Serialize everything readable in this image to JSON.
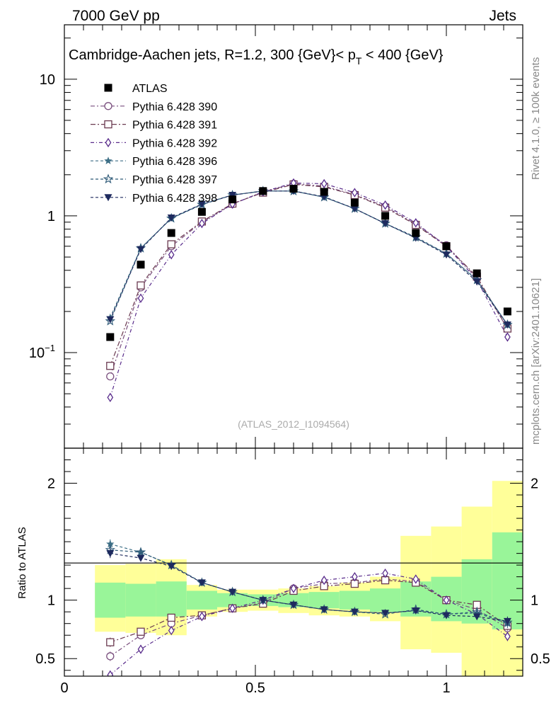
{
  "header": {
    "left": "7000 GeV pp",
    "right": "Jets"
  },
  "side_texts": {
    "rivet": "Rivet 4.1.0, ≥ 100k events",
    "mcplots": "mcplots.cern.ch [arXiv:2401.10621]"
  },
  "colors": {
    "data": "#000000",
    "p390": "#7a4f7e",
    "p391": "#6b3a50",
    "p392": "#5a2d8c",
    "p396": "#3d6f86",
    "p397": "#2f5a78",
    "p398": "#1e2a5e",
    "band_inner": "#99f599",
    "band_outer": "#ffff99"
  },
  "chart_data": [
    {
      "type": "scatter",
      "panel": "main",
      "title": "Cambridge-Aachen jets, R=1.2,  300 {GeV}< p_T < 400 {GeV}",
      "title_main": "Cambridge-Aachen jets, R=1.2,  300 {GeV}< p",
      "title_sub": "T",
      "title_tail": " < 400 {GeV}",
      "watermark": "(ATLAS_2012_I1094564)",
      "yscale": "log",
      "ylim": [
        0.02,
        25
      ],
      "xlim": [
        0,
        1.2
      ],
      "yticks": [
        {
          "v": 0.1,
          "base": "10",
          "exp": "−1"
        },
        {
          "v": 1,
          "base": "1",
          "exp": ""
        },
        {
          "v": 10,
          "base": "10",
          "exp": ""
        }
      ],
      "legend_position": "top-left",
      "x": [
        0.12,
        0.2,
        0.28,
        0.36,
        0.44,
        0.52,
        0.6,
        0.68,
        0.76,
        0.84,
        0.92,
        1.0,
        1.08,
        1.16
      ],
      "series": [
        {
          "name": "ATLAS",
          "key": "data",
          "marker": "square-filled",
          "dash": "none",
          "values": [
            0.13,
            0.44,
            0.75,
            1.07,
            1.32,
            1.52,
            1.58,
            1.5,
            1.25,
            1.0,
            0.75,
            0.6,
            0.38,
            0.2
          ]
        },
        {
          "name": "Pythia 6.428 390",
          "key": "p390",
          "marker": "circle-open",
          "dash": "6,3,2,3",
          "values": [
            0.067,
            0.3,
            0.6,
            0.9,
            1.22,
            1.5,
            1.72,
            1.65,
            1.43,
            1.17,
            0.87,
            0.61,
            0.35,
            0.15
          ]
        },
        {
          "name": "Pythia 6.428 391",
          "key": "p391",
          "marker": "square-open",
          "dash": "7,3,2,3",
          "values": [
            0.08,
            0.31,
            0.62,
            0.91,
            1.23,
            1.48,
            1.7,
            1.63,
            1.42,
            1.15,
            0.86,
            0.6,
            0.36,
            0.15
          ]
        },
        {
          "name": "Pythia 6.428 392",
          "key": "p392",
          "marker": "diamond-open",
          "dash": "5,3,1,3",
          "values": [
            0.047,
            0.25,
            0.52,
            0.88,
            1.22,
            1.5,
            1.74,
            1.72,
            1.48,
            1.2,
            0.89,
            0.6,
            0.34,
            0.13
          ]
        },
        {
          "name": "Pythia 6.428 396",
          "key": "p396",
          "marker": "star-filled",
          "dash": "4,3",
          "values": [
            0.18,
            0.58,
            0.96,
            1.22,
            1.42,
            1.52,
            1.52,
            1.37,
            1.13,
            0.88,
            0.69,
            0.53,
            0.34,
            0.16
          ]
        },
        {
          "name": "Pythia 6.428 397",
          "key": "p397",
          "marker": "star-open",
          "dash": "4,3",
          "values": [
            0.17,
            0.58,
            0.96,
            1.21,
            1.42,
            1.52,
            1.52,
            1.37,
            1.13,
            0.88,
            0.7,
            0.53,
            0.34,
            0.16
          ]
        },
        {
          "name": "Pythia 6.428 398",
          "key": "p398",
          "marker": "triangle-down-filled",
          "dash": "4,3",
          "values": [
            0.175,
            0.57,
            0.97,
            1.22,
            1.42,
            1.52,
            1.52,
            1.38,
            1.13,
            0.88,
            0.69,
            0.52,
            0.33,
            0.16
          ]
        }
      ]
    },
    {
      "type": "scatter",
      "panel": "ratio",
      "ylabel": "Ratio to ATLAS",
      "xlabel": "",
      "ylim": [
        0.35,
        2.3
      ],
      "xlim": [
        0,
        1.2
      ],
      "yticks": [
        {
          "v": 0.5,
          "label": "0.5"
        },
        {
          "v": 1,
          "label": "1"
        },
        {
          "v": 2,
          "label": "2"
        }
      ],
      "xticks": [
        {
          "v": 0,
          "label": "0"
        },
        {
          "v": 0.5,
          "label": "0.5"
        },
        {
          "v": 1,
          "label": "1"
        }
      ],
      "x": [
        0.12,
        0.2,
        0.28,
        0.36,
        0.44,
        0.52,
        0.6,
        0.68,
        0.76,
        0.84,
        0.92,
        1.0,
        1.08,
        1.16
      ],
      "bins": [
        [
          0.08,
          0.16
        ],
        [
          0.16,
          0.24
        ],
        [
          0.24,
          0.32
        ],
        [
          0.32,
          0.4
        ],
        [
          0.4,
          0.48
        ],
        [
          0.48,
          0.56
        ],
        [
          0.56,
          0.64
        ],
        [
          0.64,
          0.72
        ],
        [
          0.72,
          0.8
        ],
        [
          0.8,
          0.88
        ],
        [
          0.88,
          0.96
        ],
        [
          0.96,
          1.04
        ],
        [
          1.04,
          1.12
        ],
        [
          1.12,
          1.2
        ]
      ],
      "band_inner": [
        [
          0.85,
          1.15
        ],
        [
          0.86,
          1.14
        ],
        [
          0.86,
          1.16
        ],
        [
          0.92,
          1.08
        ],
        [
          0.94,
          1.06
        ],
        [
          0.95,
          1.05
        ],
        [
          0.94,
          1.06
        ],
        [
          0.93,
          1.07
        ],
        [
          0.92,
          1.08
        ],
        [
          0.9,
          1.1
        ],
        [
          0.86,
          1.16
        ],
        [
          0.82,
          1.2
        ],
        [
          0.8,
          1.35
        ],
        [
          0.75,
          1.58
        ]
      ],
      "band_outer": [
        [
          0.73,
          1.3
        ],
        [
          0.72,
          1.31
        ],
        [
          0.7,
          1.35
        ],
        [
          0.86,
          1.13
        ],
        [
          0.9,
          1.09
        ],
        [
          0.91,
          1.09
        ],
        [
          0.89,
          1.1
        ],
        [
          0.87,
          1.12
        ],
        [
          0.86,
          1.15
        ],
        [
          0.82,
          1.2
        ],
        [
          0.58,
          1.55
        ],
        [
          0.55,
          1.63
        ],
        [
          0.35,
          1.8
        ],
        [
          0.35,
          2.02
        ]
      ],
      "series": [
        {
          "name": "Pythia 6.428 390",
          "key": "p390",
          "marker": "circle-open",
          "dash": "6,3,2,3",
          "values": [
            0.52,
            0.7,
            0.8,
            0.87,
            0.93,
            0.98,
            1.1,
            1.14,
            1.15,
            1.18,
            1.16,
            1.0,
            0.92,
            0.76
          ],
          "errors": [
            0.04,
            0.02,
            0.01,
            0.01,
            0.01,
            0.01,
            0.01,
            0.01,
            0.01,
            0.01,
            0.01,
            0.01,
            0.02,
            0.04
          ]
        },
        {
          "name": "Pythia 6.428 391",
          "key": "p391",
          "marker": "square-open",
          "dash": "7,3,2,3",
          "values": [
            0.64,
            0.73,
            0.85,
            0.87,
            0.93,
            0.97,
            1.08,
            1.12,
            1.14,
            1.17,
            1.15,
            1.0,
            0.96,
            0.78
          ],
          "errors": [
            0.04,
            0.02,
            0.01,
            0.01,
            0.01,
            0.01,
            0.01,
            0.01,
            0.01,
            0.01,
            0.01,
            0.01,
            0.02,
            0.04
          ]
        },
        {
          "name": "Pythia 6.428 392",
          "key": "p392",
          "marker": "diamond-open",
          "dash": "5,3,1,3",
          "values": [
            0.36,
            0.58,
            0.74,
            0.86,
            0.93,
            1.0,
            1.1,
            1.17,
            1.2,
            1.23,
            1.18,
            1.0,
            0.88,
            0.69
          ],
          "errors": [
            0.03,
            0.02,
            0.01,
            0.01,
            0.01,
            0.01,
            0.01,
            0.01,
            0.01,
            0.01,
            0.01,
            0.01,
            0.02,
            0.04
          ]
        },
        {
          "name": "Pythia 6.428 396",
          "key": "p396",
          "marker": "star-filled",
          "dash": "4,3",
          "values": [
            1.48,
            1.41,
            1.3,
            1.15,
            1.07,
            1.0,
            0.96,
            0.92,
            0.9,
            0.89,
            0.91,
            0.88,
            0.89,
            0.8
          ],
          "errors": [
            0.04,
            0.02,
            0.01,
            0.01,
            0.01,
            0.01,
            0.01,
            0.01,
            0.01,
            0.01,
            0.01,
            0.01,
            0.02,
            0.04
          ]
        },
        {
          "name": "Pythia 6.428 397",
          "key": "p397",
          "marker": "star-open",
          "dash": "4,3",
          "values": [
            1.43,
            1.41,
            1.3,
            1.15,
            1.07,
            1.0,
            0.96,
            0.92,
            0.9,
            0.88,
            0.92,
            0.88,
            0.9,
            0.81
          ],
          "errors": [
            0.04,
            0.02,
            0.01,
            0.01,
            0.01,
            0.01,
            0.01,
            0.01,
            0.01,
            0.01,
            0.01,
            0.01,
            0.02,
            0.04
          ]
        },
        {
          "name": "Pythia 6.428 398",
          "key": "p398",
          "marker": "triangle-down-filled",
          "dash": "4,3",
          "values": [
            1.4,
            1.36,
            1.29,
            1.15,
            1.07,
            1.0,
            0.96,
            0.92,
            0.9,
            0.89,
            0.91,
            0.87,
            0.86,
            0.82
          ],
          "errors": [
            0.04,
            0.02,
            0.01,
            0.01,
            0.01,
            0.01,
            0.01,
            0.01,
            0.01,
            0.01,
            0.01,
            0.01,
            0.02,
            0.04
          ]
        }
      ]
    }
  ]
}
